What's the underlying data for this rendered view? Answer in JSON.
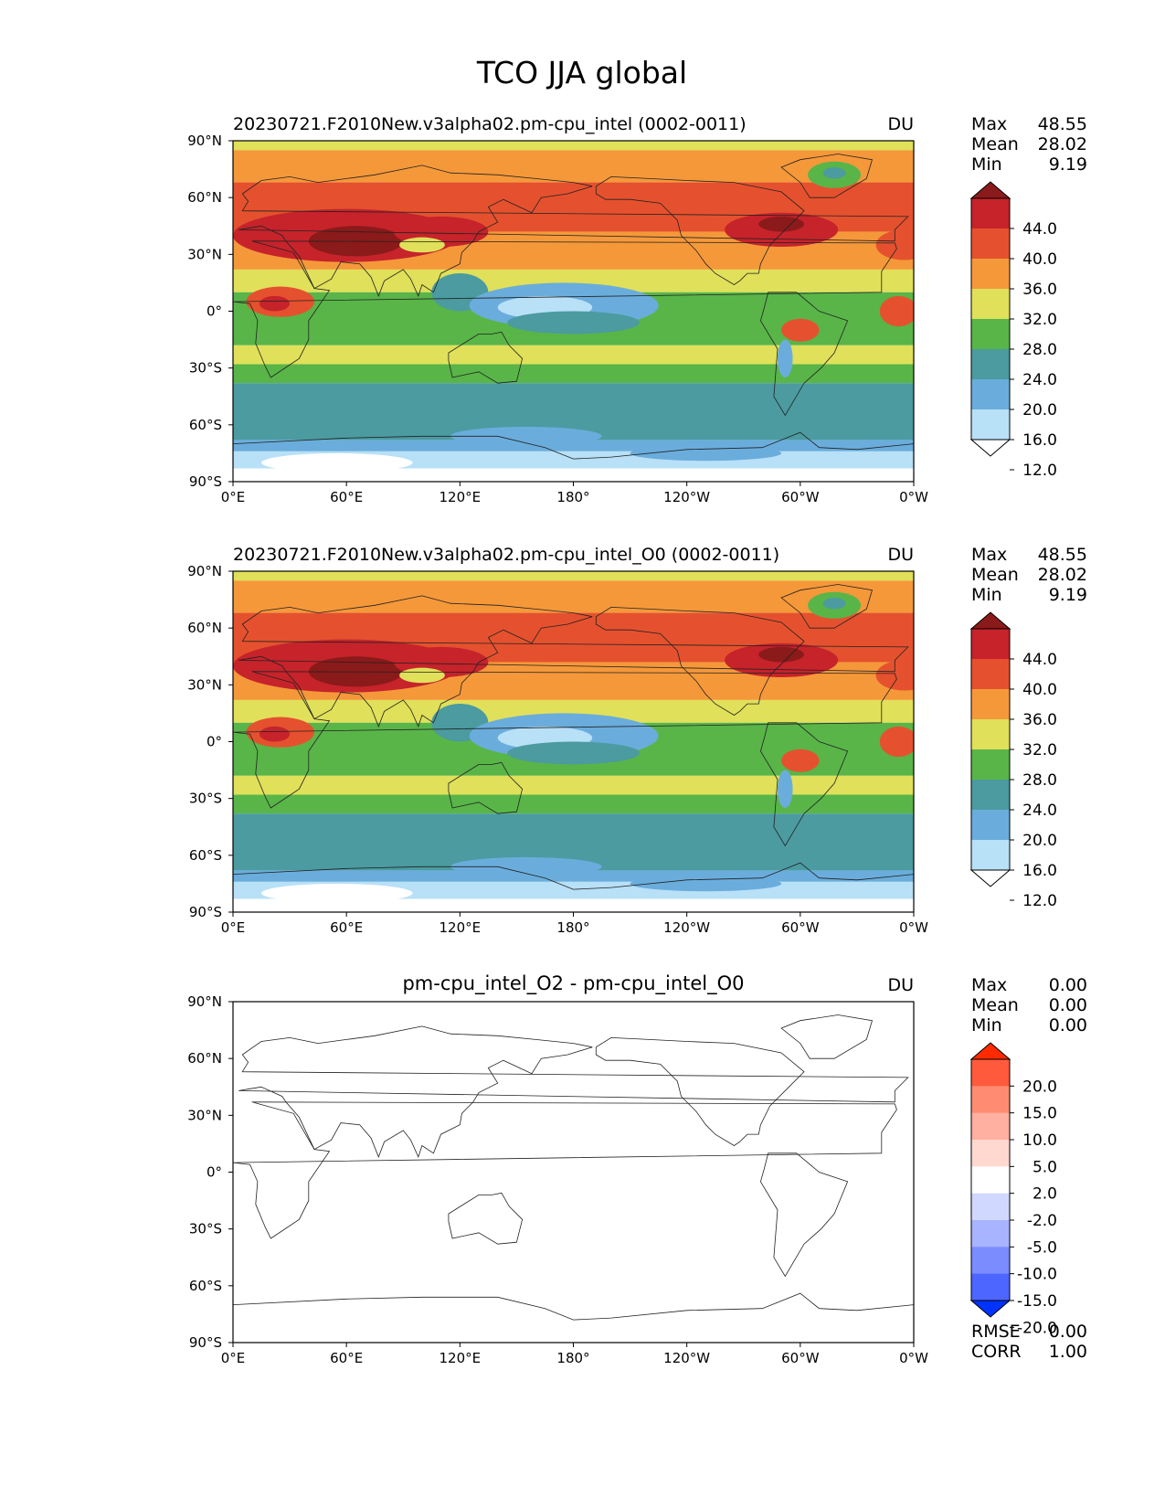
{
  "figure_title": "TCO JJA global",
  "panels": [
    {
      "title": "20230721.F2010New.v3alpha02.pm-cpu_intel (0002-0011)",
      "title_align": "left",
      "units": "DU",
      "stats": [
        {
          "label": "Max",
          "value": "48.55"
        },
        {
          "label": "Mean",
          "value": "28.02"
        },
        {
          "label": "Min",
          "value": "9.19"
        }
      ],
      "colorbar": {
        "levels": [
          "44.0",
          "40.0",
          "36.0",
          "32.0",
          "28.0",
          "24.0",
          "20.0",
          "16.0",
          "12.0"
        ],
        "top_arrow_color": "#8b1a1a",
        "bottom_arrow_color": "#ffffff",
        "colors": [
          "#8b1a1a",
          "#c6232b",
          "#e5512e",
          "#f5983a",
          "#e0e05a",
          "#59b548",
          "#4b9ba0",
          "#6aaddc",
          "#b8e0f7",
          "#ffffff"
        ]
      },
      "field": "tco"
    },
    {
      "title": "20230721.F2010New.v3alpha02.pm-cpu_intel_O0 (0002-0011)",
      "title_align": "left",
      "units": "DU",
      "stats": [
        {
          "label": "Max",
          "value": "48.55"
        },
        {
          "label": "Mean",
          "value": "28.02"
        },
        {
          "label": "Min",
          "value": "9.19"
        }
      ],
      "colorbar": {
        "levels": [
          "44.0",
          "40.0",
          "36.0",
          "32.0",
          "28.0",
          "24.0",
          "20.0",
          "16.0",
          "12.0"
        ],
        "top_arrow_color": "#8b1a1a",
        "bottom_arrow_color": "#ffffff",
        "colors": [
          "#8b1a1a",
          "#c6232b",
          "#e5512e",
          "#f5983a",
          "#e0e05a",
          "#59b548",
          "#4b9ba0",
          "#6aaddc",
          "#b8e0f7",
          "#ffffff"
        ]
      },
      "field": "tco"
    },
    {
      "title": "pm-cpu_intel_O2 - pm-cpu_intel_O0",
      "title_align": "center",
      "units": "DU",
      "stats": [
        {
          "label": "Max",
          "value": "0.00"
        },
        {
          "label": "Mean",
          "value": "0.00"
        },
        {
          "label": "Min",
          "value": "0.00"
        }
      ],
      "colorbar": {
        "levels": [
          "20.0",
          "15.0",
          "10.0",
          "5.0",
          "2.0",
          "-2.0",
          "-5.0",
          "-10.0",
          "-15.0",
          "-20.0"
        ],
        "top_arrow_color": "#ff2a00",
        "bottom_arrow_color": "#0033ff",
        "colors": [
          "#ff2a00",
          "#ff5a3c",
          "#ff8c72",
          "#ffb0a0",
          "#ffd8d0",
          "#ffffff",
          "#d0d8ff",
          "#a8b4ff",
          "#7a8cff",
          "#4d66ff",
          "#0033ff"
        ]
      },
      "diff_stats": [
        {
          "label": "RMSE",
          "value": "0.00"
        },
        {
          "label": "CORR",
          "value": "1.00"
        }
      ],
      "field": "diff"
    }
  ],
  "chart_data": [
    {
      "type": "heatmap",
      "title": "20230721.F2010New.v3alpha02.pm-cpu_intel (0002-0011)",
      "units": "DU",
      "x_ticks": [
        "0°E",
        "60°E",
        "120°E",
        "180°",
        "120°W",
        "60°W",
        "0°W"
      ],
      "y_ticks": [
        "90°N",
        "60°N",
        "30°N",
        "0°",
        "30°S",
        "60°S",
        "90°S"
      ],
      "xlim": [
        0,
        360
      ],
      "ylim": [
        -90,
        90
      ],
      "levels": [
        12,
        16,
        20,
        24,
        28,
        32,
        36,
        40,
        44
      ],
      "max": 48.55,
      "mean": 28.02,
      "min": 9.19
    },
    {
      "type": "heatmap",
      "title": "20230721.F2010New.v3alpha02.pm-cpu_intel_O0 (0002-0011)",
      "units": "DU",
      "x_ticks": [
        "0°E",
        "60°E",
        "120°E",
        "180°",
        "120°W",
        "60°W",
        "0°W"
      ],
      "y_ticks": [
        "90°N",
        "60°N",
        "30°N",
        "0°",
        "30°S",
        "60°S",
        "90°S"
      ],
      "xlim": [
        0,
        360
      ],
      "ylim": [
        -90,
        90
      ],
      "levels": [
        12,
        16,
        20,
        24,
        28,
        32,
        36,
        40,
        44
      ],
      "max": 48.55,
      "mean": 28.02,
      "min": 9.19
    },
    {
      "type": "heatmap",
      "title": "pm-cpu_intel_O2 - pm-cpu_intel_O0",
      "units": "DU",
      "x_ticks": [
        "0°E",
        "60°E",
        "120°E",
        "180°",
        "120°W",
        "60°W",
        "0°W"
      ],
      "y_ticks": [
        "90°N",
        "60°N",
        "30°N",
        "0°",
        "30°S",
        "60°S",
        "90°S"
      ],
      "xlim": [
        0,
        360
      ],
      "ylim": [
        -90,
        90
      ],
      "levels": [
        -20,
        -15,
        -10,
        -5,
        -2,
        2,
        5,
        10,
        15,
        20
      ],
      "max": 0.0,
      "mean": 0.0,
      "min": 0.0,
      "rmse": 0.0,
      "corr": 1.0
    }
  ]
}
